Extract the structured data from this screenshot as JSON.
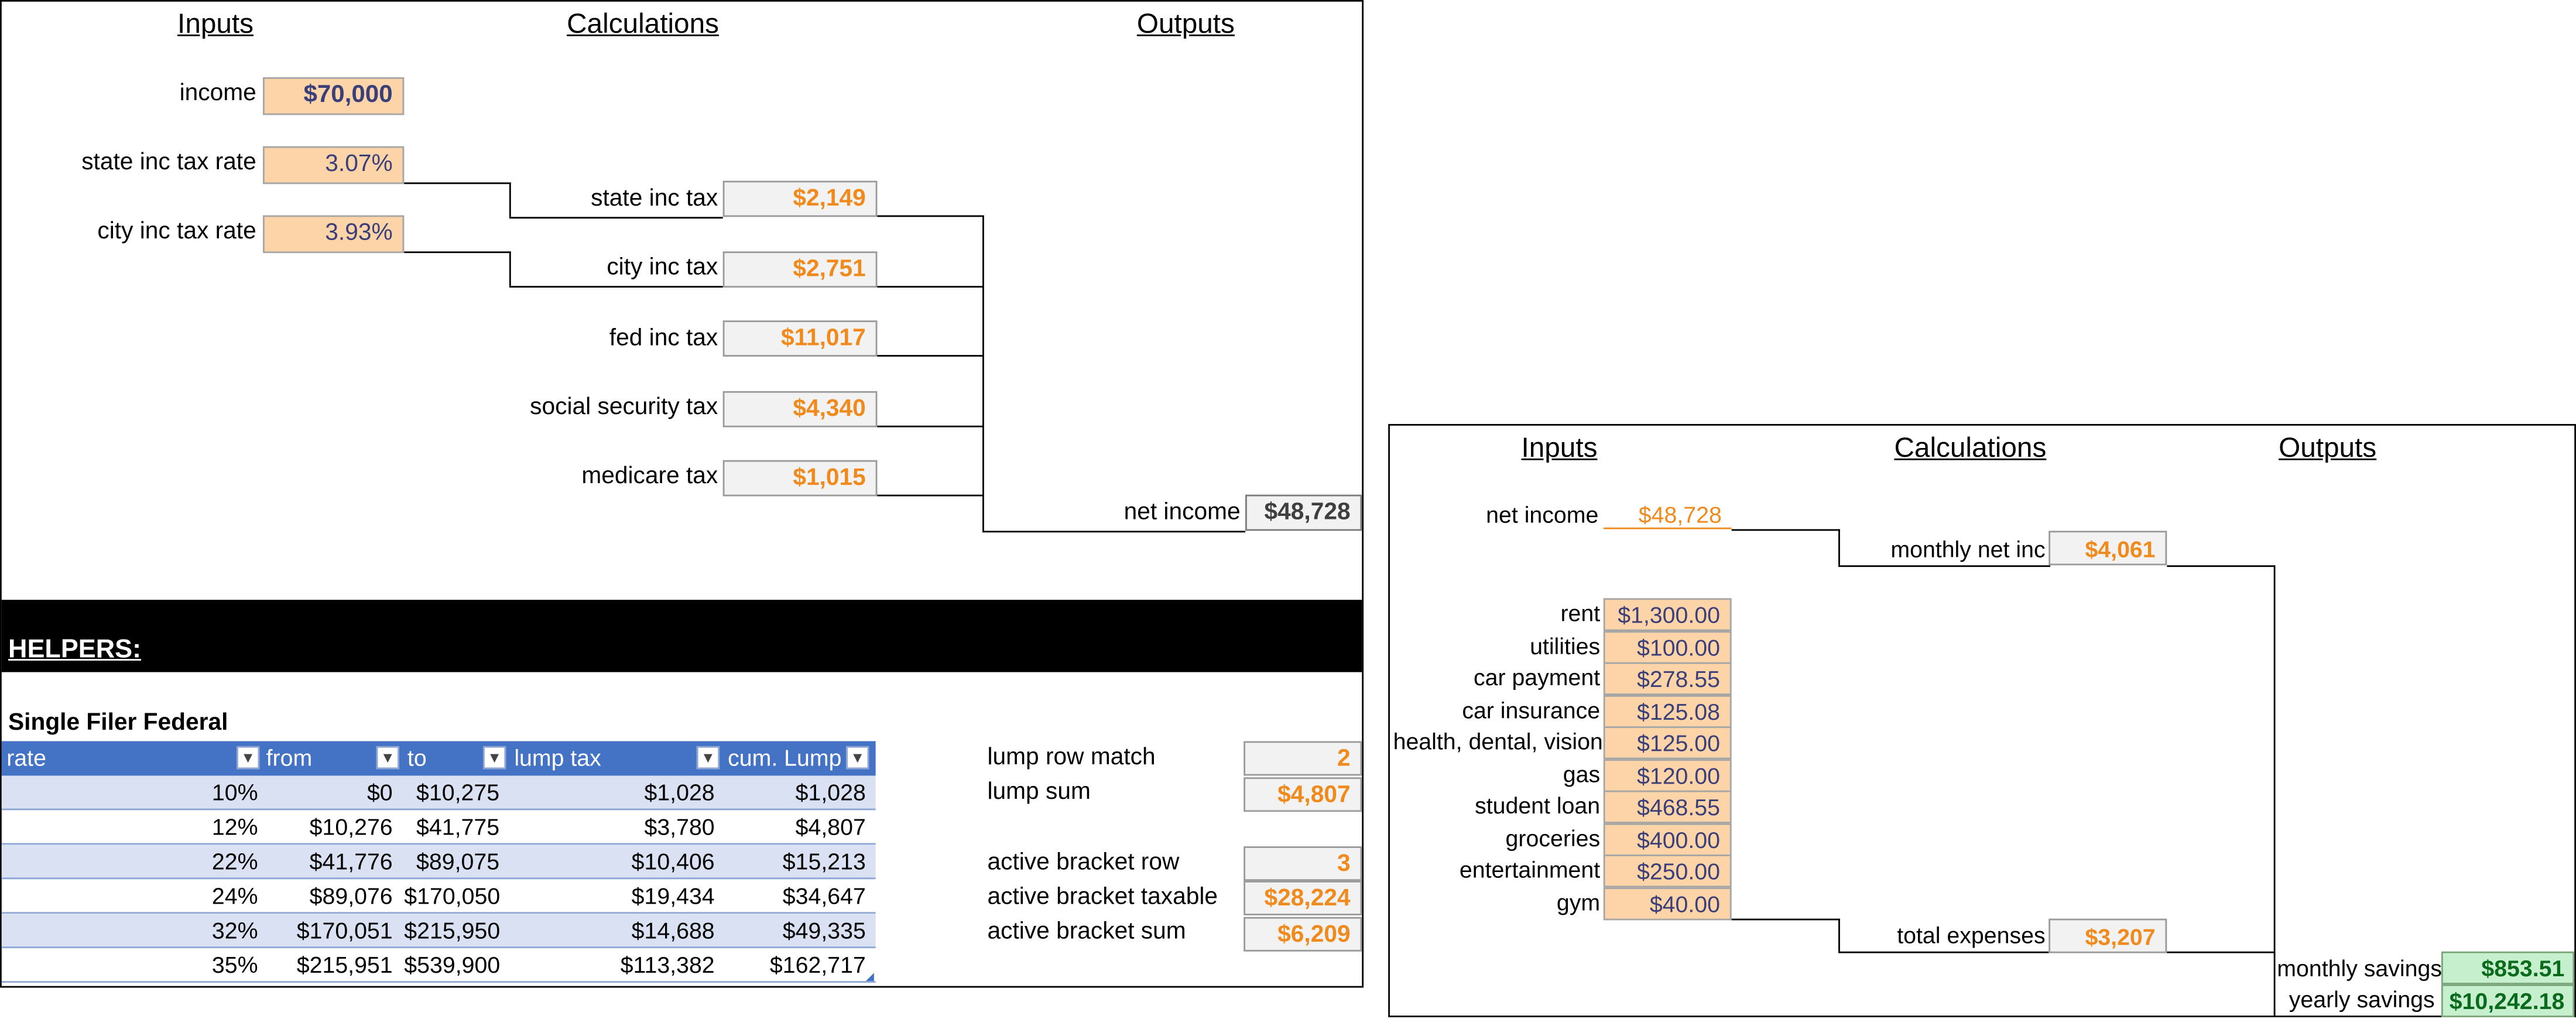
{
  "tax_sheet": {
    "headers": {
      "inputs": "Inputs",
      "calculations": "Calculations",
      "outputs": "Outputs"
    },
    "inputs": {
      "income": {
        "label": "income",
        "value": "$70,000"
      },
      "state_rate": {
        "label": "state inc tax rate",
        "value": "3.07%"
      },
      "city_rate": {
        "label": "city inc tax rate",
        "value": "3.93%"
      }
    },
    "calcs": [
      {
        "label": "state inc tax",
        "value": "$2,149"
      },
      {
        "label": "city inc tax",
        "value": "$2,751"
      },
      {
        "label": "fed inc tax",
        "value": "$11,017"
      },
      {
        "label": "social security tax",
        "value": "$4,340"
      },
      {
        "label": "medicare tax",
        "value": "$1,015"
      }
    ],
    "net_income": {
      "label": "net income",
      "value": "$48,728"
    }
  },
  "helpers": {
    "banner": "HELPERS:",
    "table_title": "Single Filer Federal",
    "columns": [
      "rate",
      "from",
      "to",
      "lump tax",
      "cum. Lump"
    ],
    "rows": [
      [
        "10%",
        "$0",
        "$10,275",
        "$1,028",
        "$1,028"
      ],
      [
        "12%",
        "$10,276",
        "$41,775",
        "$3,780",
        "$4,807"
      ],
      [
        "22%",
        "$41,776",
        "$89,075",
        "$10,406",
        "$15,213"
      ],
      [
        "24%",
        "$89,076",
        "$170,050",
        "$19,434",
        "$34,647"
      ],
      [
        "32%",
        "$170,051",
        "$215,950",
        "$14,688",
        "$49,335"
      ],
      [
        "35%",
        "$215,951",
        "$539,900",
        "$113,382",
        "$162,717"
      ]
    ],
    "side": [
      {
        "label": "lump row match",
        "value": "2"
      },
      {
        "label": "lump sum",
        "value": "$4,807"
      },
      {
        "label": "active bracket row",
        "value": "3"
      },
      {
        "label": "active bracket taxable",
        "value": "$28,224"
      },
      {
        "label": "active bracket sum",
        "value": "$6,209"
      }
    ]
  },
  "budget_sheet": {
    "headers": {
      "inputs": "Inputs",
      "calculations": "Calculations",
      "outputs": "Outputs"
    },
    "net_income": {
      "label": "net income",
      "value": "$48,728"
    },
    "monthly_net": {
      "label": "monthly net inc",
      "value": "$4,061"
    },
    "expenses": [
      {
        "label": "rent",
        "value": "$1,300.00"
      },
      {
        "label": "utilities",
        "value": "$100.00"
      },
      {
        "label": "car payment",
        "value": "$278.55"
      },
      {
        "label": "car insurance",
        "value": "$125.08"
      },
      {
        "label": "health, dental, vision",
        "value": "$125.00"
      },
      {
        "label": "gas",
        "value": "$120.00"
      },
      {
        "label": "student loan",
        "value": "$468.55"
      },
      {
        "label": "groceries",
        "value": "$400.00"
      },
      {
        "label": "entertainment",
        "value": "$250.00"
      },
      {
        "label": "gym",
        "value": "$40.00"
      }
    ],
    "total_expenses": {
      "label": "total expenses",
      "value": "$3,207"
    },
    "monthly_savings": {
      "label": "monthly savings",
      "value": "$853.51"
    },
    "yearly_savings": {
      "label": "yearly savings",
      "value": "$10,242.18"
    }
  }
}
